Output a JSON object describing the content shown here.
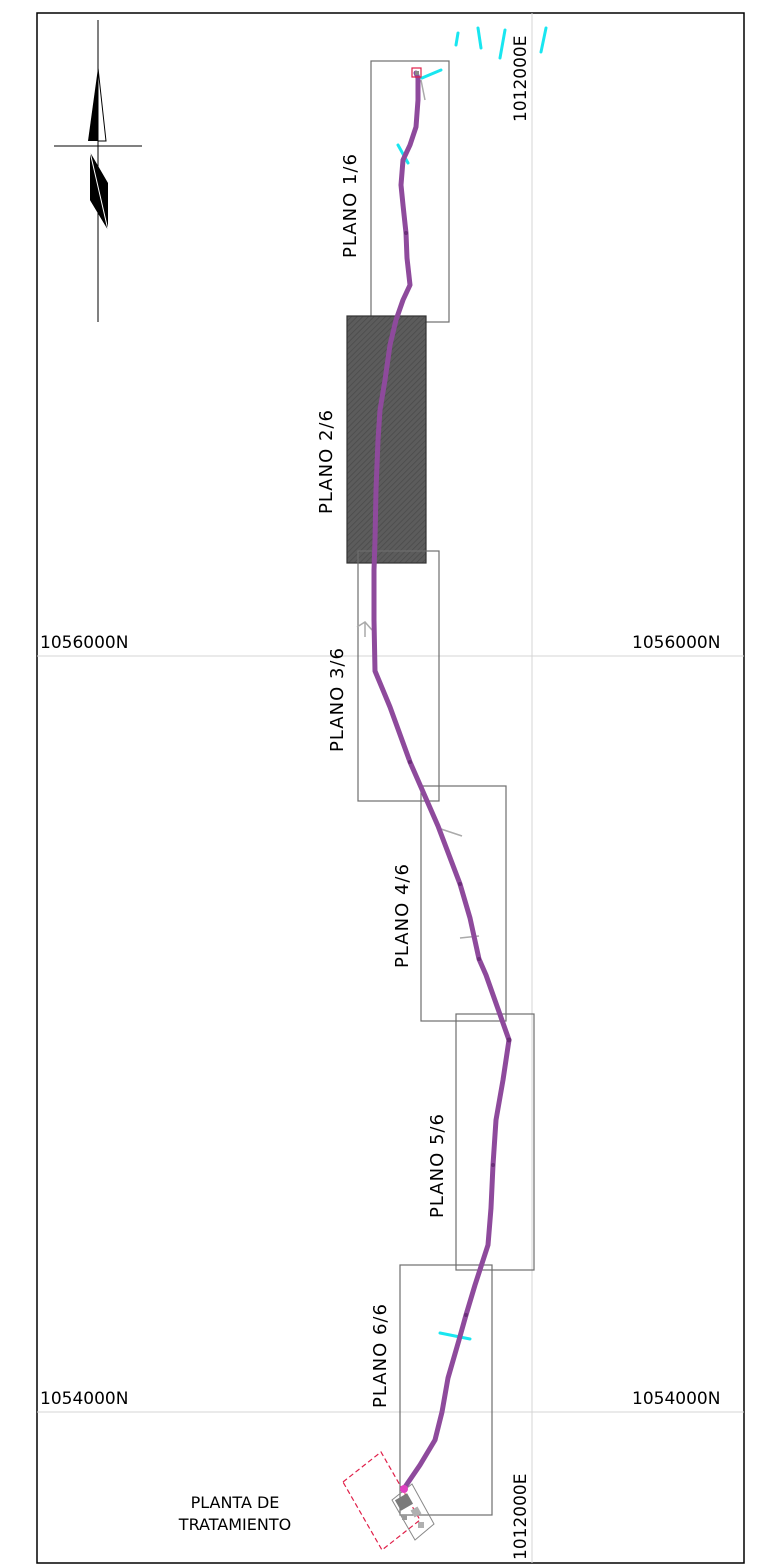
{
  "easting": {
    "top": "1012000E",
    "bottom": "1012000E"
  },
  "northing": {
    "north_left": "1056000N",
    "north_right": "1056000N",
    "south_left": "1054000N",
    "south_right": "1054000N"
  },
  "sheets": [
    {
      "label": "PLANO  1/6",
      "highlighted": false
    },
    {
      "label": "PLANO  2/6",
      "highlighted": true
    },
    {
      "label": "PLANO  3/6",
      "highlighted": false
    },
    {
      "label": "PLANO  4/6",
      "highlighted": false
    },
    {
      "label": "PLANO  5/6",
      "highlighted": false
    },
    {
      "label": "PLANO  6/6",
      "highlighted": false
    }
  ],
  "plant": {
    "line1": "PLANTA  DE",
    "line2": "TRATAMIENTO"
  },
  "colors": {
    "route": "#8e4a9c",
    "grid": "#d4d4d4",
    "frame": "#000000",
    "sheet_border": "#6e6e6e",
    "highlight_fill": "#5a5a5a",
    "water": "#19e6f0",
    "plant_boundary": "#e0204a"
  },
  "icons": {
    "north_arrow": "north-arrow-icon"
  }
}
